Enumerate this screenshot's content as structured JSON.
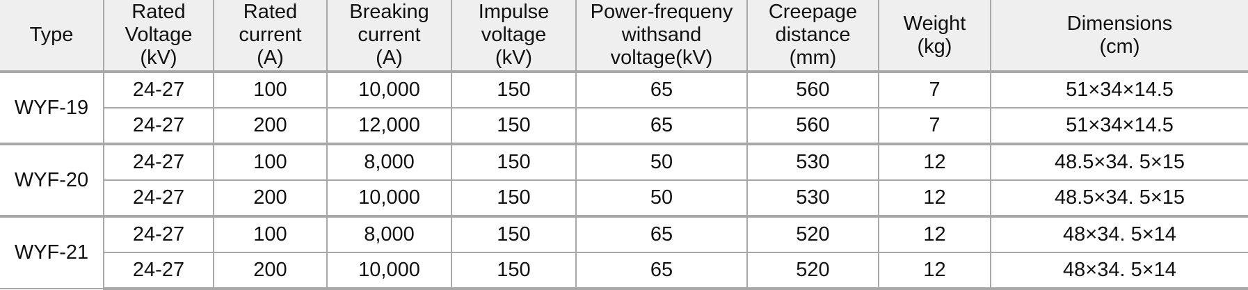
{
  "table": {
    "header": [
      [
        "Type"
      ],
      [
        "Rated",
        "Voltage",
        "(kV)"
      ],
      [
        "Rated",
        "current",
        "(A)"
      ],
      [
        "Breaking",
        "current",
        "(A)"
      ],
      [
        "Impulse",
        "voltage",
        "(kV)"
      ],
      [
        "Power-frequeny",
        "withsand",
        "voltage(kV)"
      ],
      [
        "Creepage",
        "distance",
        "(mm)"
      ],
      [
        "Weight",
        "(kg)"
      ],
      [
        "Dimensions",
        "(cm)"
      ]
    ],
    "groups": [
      {
        "type": "WYF-19",
        "rows": [
          [
            "24-27",
            "100",
            "10,000",
            "150",
            "65",
            "560",
            "7",
            "51×34×14.5"
          ],
          [
            "24-27",
            "200",
            "12,000",
            "150",
            "65",
            "560",
            "7",
            "51×34×14.5"
          ]
        ]
      },
      {
        "type": "WYF-20",
        "rows": [
          [
            "24-27",
            "100",
            "8,000",
            "150",
            "50",
            "530",
            "12",
            "48.5×34. 5×15"
          ],
          [
            "24-27",
            "200",
            "10,000",
            "150",
            "50",
            "530",
            "12",
            "48.5×34. 5×15"
          ]
        ]
      },
      {
        "type": "WYF-21",
        "rows": [
          [
            "24-27",
            "100",
            "8,000",
            "150",
            "65",
            "520",
            "12",
            "48×34. 5×14"
          ],
          [
            "24-27",
            "200",
            "10,000",
            "150",
            "65",
            "520",
            "12",
            "48×34. 5×14"
          ]
        ]
      }
    ]
  }
}
